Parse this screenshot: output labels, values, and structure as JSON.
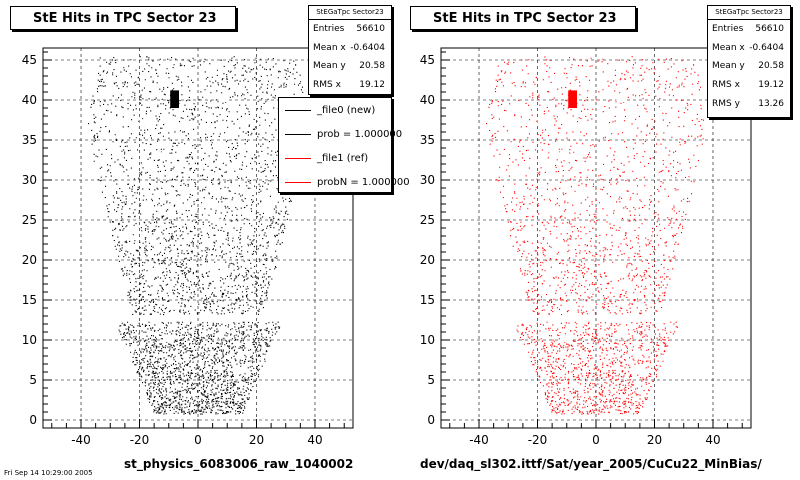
{
  "chart_data": [
    {
      "type": "scatter",
      "title": "StE Hits in TPC Sector 23",
      "xlabel": "st_physics_6083006_raw_1040002",
      "ylabel": "",
      "xlim": [
        -53,
        53
      ],
      "ylim": [
        -1,
        46.5
      ],
      "xticks": [
        -40,
        -20,
        0,
        20,
        40
      ],
      "yticks": [
        0,
        5,
        10,
        15,
        20,
        25,
        30,
        35,
        40,
        45
      ],
      "grid": true,
      "color": "#000000",
      "stats": {
        "name": "StEGaTpc Sector23",
        "rows": [
          {
            "label": "Entries",
            "value": "56610"
          },
          {
            "label": "Mean x",
            "value": "-0.6404"
          },
          {
            "label": "Mean y",
            "value": "20.58"
          },
          {
            "label": "RMS x",
            "value": "19.12"
          }
        ]
      },
      "legend": {
        "position": "top-right",
        "entries": [
          {
            "label": "_file0 (new)",
            "color": "#000000"
          },
          {
            "label": "prob = 1.000000",
            "color": "#000000"
          },
          {
            "label": "_file1 (ref)",
            "color": "#ff0000"
          },
          {
            "label": "probN = 1.000000",
            "color": "#ff0000"
          }
        ]
      }
    },
    {
      "type": "scatter",
      "title": "StE Hits in TPC Sector 23",
      "xlabel": "dev/daq_sl302.ittf/Sat/year_2005/CuCu22_MinBias/",
      "ylabel": "",
      "xlim": [
        -53,
        53
      ],
      "ylim": [
        -1,
        46.5
      ],
      "xticks": [
        -40,
        -20,
        0,
        20,
        40
      ],
      "yticks": [
        0,
        5,
        10,
        15,
        20,
        25,
        30,
        35,
        40,
        45
      ],
      "grid": true,
      "color": "#ff0000",
      "stats": {
        "name": "StEGaTpc Sector23",
        "rows": [
          {
            "label": "Entries",
            "value": "56610"
          },
          {
            "label": "Mean x",
            "value": "-0.6404"
          },
          {
            "label": "Mean y",
            "value": "20.58"
          },
          {
            "label": "RMS x",
            "value": "19.12"
          },
          {
            "label": "RMS y",
            "value": "13.26"
          }
        ]
      }
    }
  ],
  "footer": "Fri Sep 14 10:29:00 2005"
}
